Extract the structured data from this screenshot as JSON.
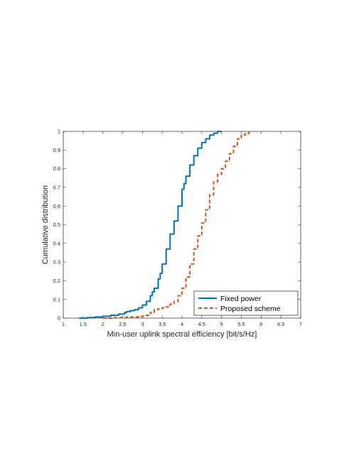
{
  "chart_data": {
    "type": "line",
    "title": "",
    "xlabel": "Min-user uplink spectral efficiency [bit/s/Hz]",
    "ylabel": "Cumulative distribution",
    "xlim": [
      1,
      7
    ],
    "ylim": [
      0,
      1
    ],
    "xticks": [
      "1",
      "1.5",
      "2",
      "2.5",
      "3",
      "3.5",
      "4",
      "4.5",
      "5",
      "5.5",
      "6",
      "6.5",
      "7"
    ],
    "yticks": [
      "0",
      "0.1",
      "0.2",
      "0.3",
      "0.4",
      "0.5",
      "0.6",
      "0.7",
      "0.8",
      "0.9",
      "1"
    ],
    "grid": false,
    "legend_position": "bottom-right",
    "series": [
      {
        "name": "Fixed power",
        "color": "#0072BD",
        "style": "solid",
        "x": [
          1.4,
          1.6,
          1.8,
          2.0,
          2.2,
          2.4,
          2.55,
          2.6,
          2.7,
          2.8,
          2.9,
          3.0,
          3.1,
          3.2,
          3.25,
          3.3,
          3.4,
          3.45,
          3.5,
          3.6,
          3.7,
          3.8,
          3.9,
          4.0,
          4.05,
          4.1,
          4.2,
          4.3,
          4.4,
          4.5,
          4.6,
          4.7,
          4.8,
          4.9,
          5.0
        ],
        "y": [
          0.0,
          0.003,
          0.006,
          0.01,
          0.015,
          0.022,
          0.03,
          0.035,
          0.04,
          0.045,
          0.055,
          0.07,
          0.09,
          0.12,
          0.14,
          0.16,
          0.21,
          0.24,
          0.29,
          0.37,
          0.45,
          0.52,
          0.6,
          0.69,
          0.72,
          0.76,
          0.82,
          0.87,
          0.91,
          0.94,
          0.96,
          0.98,
          0.99,
          1.0,
          1.0
        ]
      },
      {
        "name": "Proposed scheme",
        "color": "#D95319",
        "style": "dashed",
        "x": [
          2.0,
          2.3,
          2.6,
          2.9,
          3.1,
          3.2,
          3.3,
          3.4,
          3.5,
          3.6,
          3.7,
          3.8,
          3.9,
          4.0,
          4.1,
          4.2,
          4.3,
          4.4,
          4.5,
          4.6,
          4.7,
          4.8,
          4.9,
          5.0,
          5.1,
          5.2,
          5.3,
          5.4,
          5.5,
          5.6,
          5.7
        ],
        "y": [
          0.0,
          0.003,
          0.006,
          0.01,
          0.015,
          0.03,
          0.045,
          0.05,
          0.055,
          0.06,
          0.075,
          0.09,
          0.12,
          0.16,
          0.22,
          0.29,
          0.37,
          0.44,
          0.51,
          0.58,
          0.66,
          0.73,
          0.77,
          0.8,
          0.84,
          0.88,
          0.92,
          0.96,
          0.98,
          0.99,
          1.0
        ]
      }
    ]
  }
}
